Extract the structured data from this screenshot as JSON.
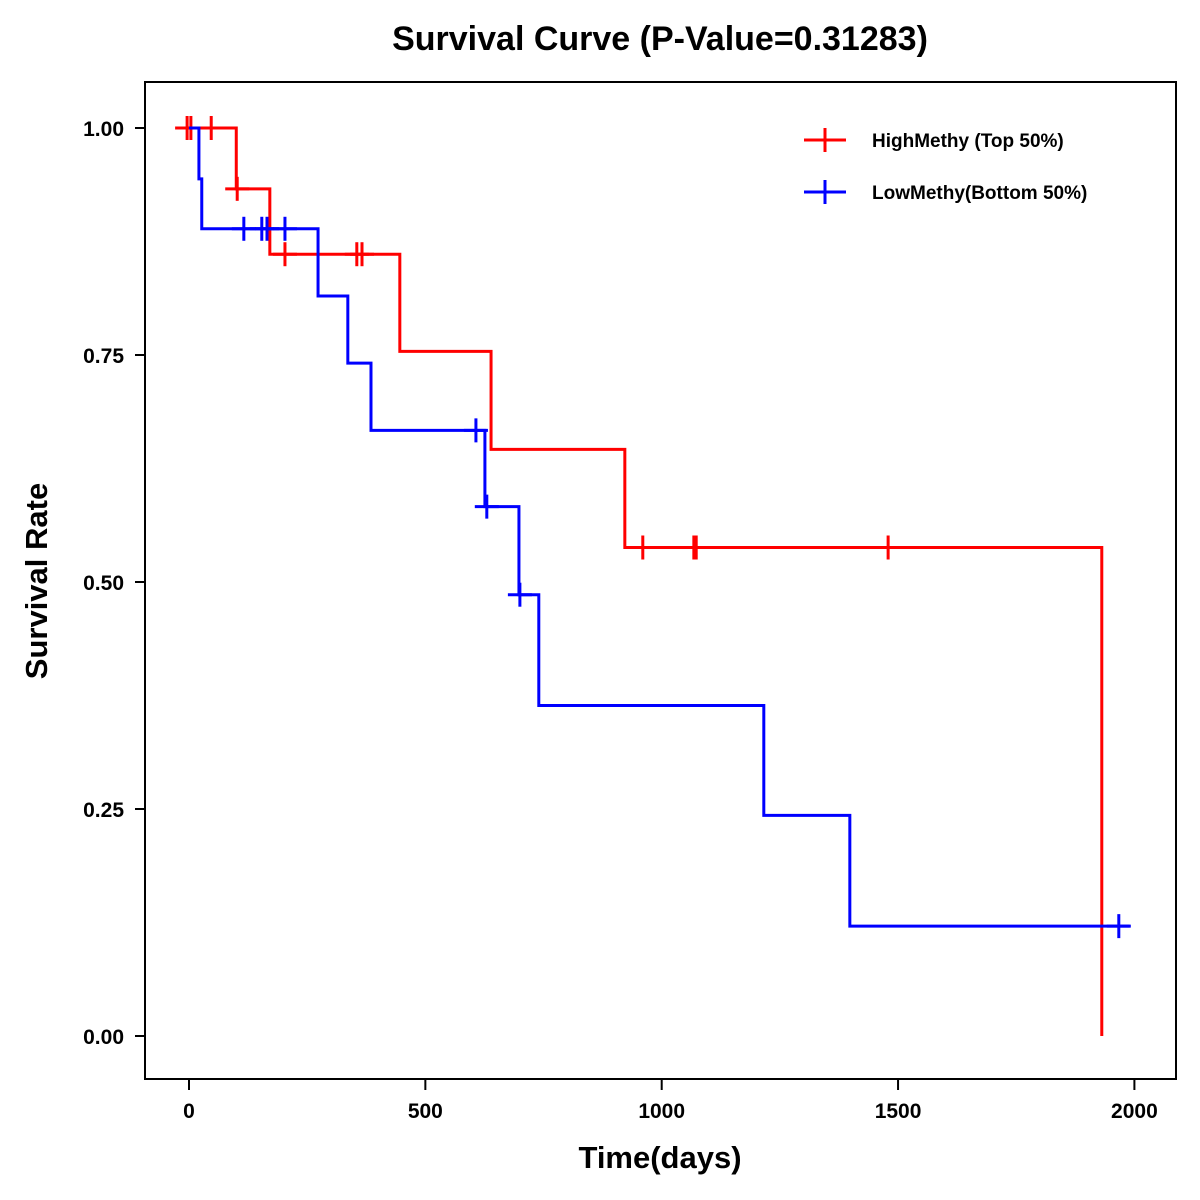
{
  "chart_data": {
    "type": "line",
    "subtype": "kaplan-meier-step",
    "title": "Survival Curve (P-Value=0.31283)",
    "xlabel": "Time(days)",
    "ylabel": "Survival Rate",
    "xlim": [
      -90,
      2060
    ],
    "ylim": [
      -0.05,
      1.05
    ],
    "x_ticks": [
      0,
      500,
      1000,
      1500,
      2000
    ],
    "x_tick_labels": [
      "0",
      "500",
      "1000",
      "1500",
      "2000"
    ],
    "y_ticks": [
      0,
      0.25,
      0.5,
      0.75,
      1.0
    ],
    "y_tick_labels": [
      "0.00",
      "0.25",
      "0.50",
      "0.75",
      "1.00"
    ],
    "grid": false,
    "legend_position": "top-right",
    "series": [
      {
        "name": "HighMethy (Top 50%)",
        "color": "#ff0000",
        "steps": [
          {
            "t": 0,
            "s": 1.0
          },
          {
            "t": 100,
            "s": 0.933
          },
          {
            "t": 171,
            "s": 0.861
          },
          {
            "t": 446,
            "s": 0.754
          },
          {
            "t": 639,
            "s": 0.646
          },
          {
            "t": 922,
            "s": 0.538
          },
          {
            "t": 1931,
            "s": 0.0
          }
        ],
        "end_t": 1931,
        "censored": [
          {
            "t": -4,
            "s": 1.0
          },
          {
            "t": 4,
            "s": 1.0
          },
          {
            "t": 47,
            "s": 1.0
          },
          {
            "t": 102,
            "s": 0.933
          },
          {
            "t": 203,
            "s": 0.861
          },
          {
            "t": 355,
            "s": 0.861
          },
          {
            "t": 366,
            "s": 0.861
          },
          {
            "t": 960,
            "s": 0.538
          },
          {
            "t": 1068,
            "s": 0.538
          },
          {
            "t": 1073,
            "s": 0.538
          },
          {
            "t": 1479,
            "s": 0.538
          }
        ]
      },
      {
        "name": "LowMethy(Bottom 50%)",
        "color": "#0000ff",
        "steps": [
          {
            "t": 0,
            "s": 1.0
          },
          {
            "t": 21,
            "s": 0.944
          },
          {
            "t": 27,
            "s": 0.889
          },
          {
            "t": 273,
            "s": 0.815
          },
          {
            "t": 336,
            "s": 0.741
          },
          {
            "t": 385,
            "s": 0.667
          },
          {
            "t": 626,
            "s": 0.583
          },
          {
            "t": 698,
            "s": 0.486
          },
          {
            "t": 740,
            "s": 0.364
          },
          {
            "t": 1216,
            "s": 0.243
          },
          {
            "t": 1398,
            "s": 0.121
          }
        ],
        "end_t": 1990,
        "censored": [
          {
            "t": 116,
            "s": 0.889
          },
          {
            "t": 154,
            "s": 0.889
          },
          {
            "t": 165,
            "s": 0.889
          },
          {
            "t": 203,
            "s": 0.889
          },
          {
            "t": 607,
            "s": 0.667
          },
          {
            "t": 630,
            "s": 0.583
          },
          {
            "t": 700,
            "s": 0.486
          },
          {
            "t": 1967,
            "s": 0.121
          }
        ]
      }
    ]
  }
}
